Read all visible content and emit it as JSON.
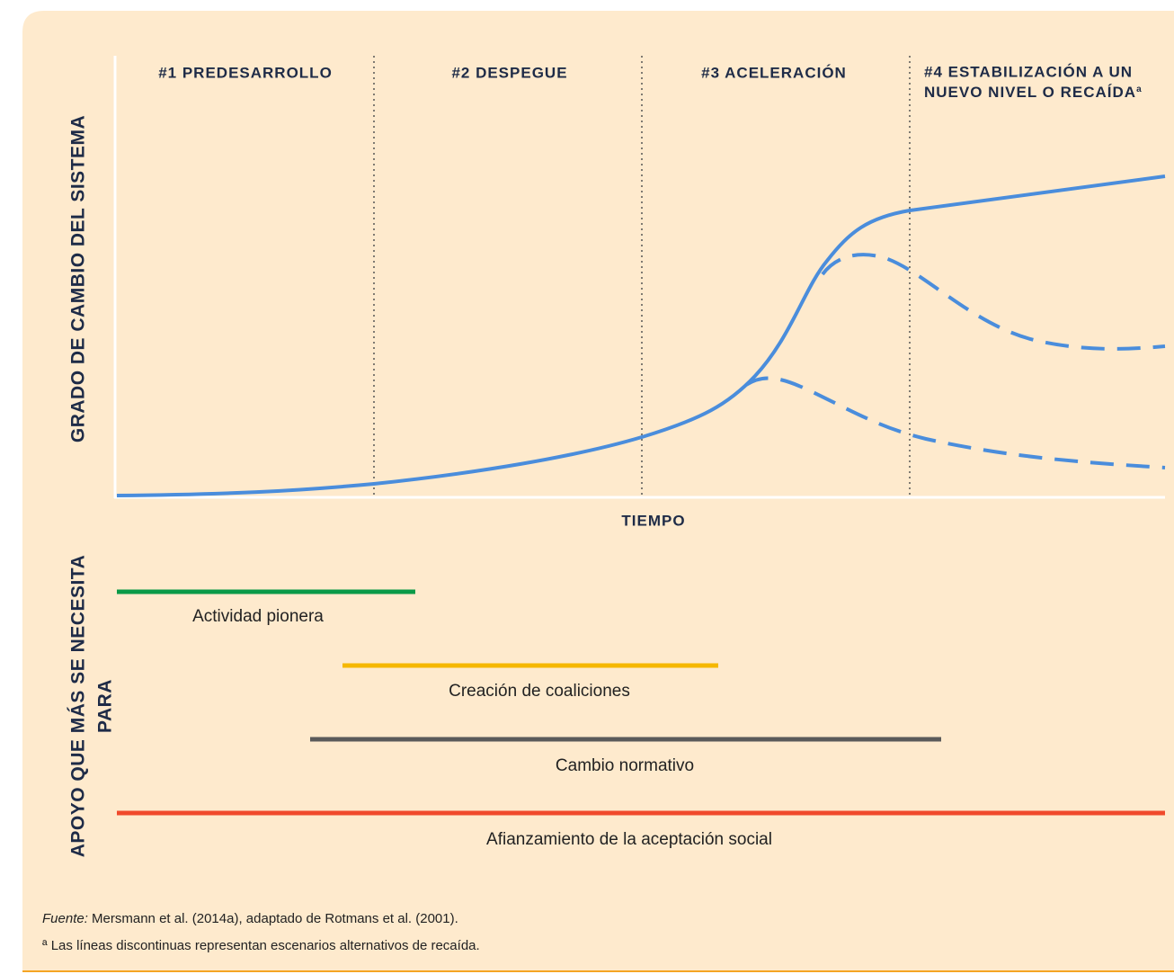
{
  "y_axis_label": "GRADO DE CAMBIO DEL SISTEMA",
  "x_axis_label": "TIEMPO",
  "phases": [
    {
      "label": "#1  PREDESARROLLO"
    },
    {
      "label": "#2 DESPEGUE"
    },
    {
      "label": "#3 ACELERACIÓN"
    },
    {
      "lines": [
        "#4 ESTABILIZACIÓN A UN",
        "NUEVO NIVEL O RECAÍDA"
      ],
      "note": "a"
    }
  ],
  "support_axis_label": [
    "APOYO QUE MÁS SE NECESITA",
    "PARA"
  ],
  "support": [
    "Actividad pionera",
    "Creación de coaliciones",
    "Cambio normativo",
    "Afianzamiento de la aceptación social"
  ],
  "footer": {
    "source_prefix": "Fuente:",
    "source": "Mersmann et al. (2014a), adaptado de Rotmans et al. (2001).",
    "note": "ª Las líneas discontinuas representan escenarios alternativos de recaída."
  }
}
